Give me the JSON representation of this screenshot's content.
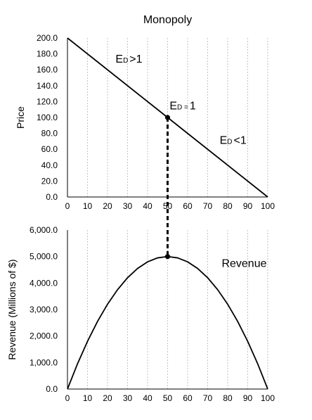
{
  "chart_data": [
    {
      "type": "line",
      "title": "Monopoly",
      "xlabel": "",
      "ylabel": "Price",
      "xlim": [
        0,
        100
      ],
      "ylim": [
        0,
        200
      ],
      "x_ticks": [
        "0",
        "10",
        "20",
        "30",
        "40",
        "50",
        "60",
        "70",
        "80",
        "90",
        "100"
      ],
      "y_ticks": [
        "0.0",
        "20.0",
        "40.0",
        "60.0",
        "80.0",
        "100.0",
        "120.0",
        "140.0",
        "160.0",
        "180.0",
        "200.0"
      ],
      "series": [
        {
          "x": [
            0,
            100
          ],
          "y": [
            200,
            0
          ]
        }
      ],
      "marker": {
        "x": 50,
        "y": 100
      },
      "annotations": [
        {
          "main": "E",
          "sub": "D",
          "rest": ">1",
          "x": 24,
          "y": 169
        },
        {
          "main": "E",
          "sub": "D =",
          "rest": "1",
          "x": 51,
          "y": 110
        },
        {
          "main": "E",
          "sub": "D",
          "rest": "<1",
          "x": 76,
          "y": 67
        }
      ],
      "grid": "vertical-dotted"
    },
    {
      "type": "line",
      "title": "",
      "xlabel": "",
      "ylabel": "Revenue (Millions of $)",
      "xlim": [
        0,
        100
      ],
      "ylim": [
        0,
        6000
      ],
      "x_ticks": [
        "0",
        "10",
        "20",
        "30",
        "40",
        "50",
        "60",
        "70",
        "80",
        "90",
        "100"
      ],
      "y_ticks": [
        "0.0",
        "1,000.0",
        "2,000.0",
        "3,000.0",
        "4,000.0",
        "5,000.0",
        "6,000.0"
      ],
      "series": [
        {
          "name": "Revenue",
          "x": [
            0,
            5,
            10,
            15,
            20,
            25,
            30,
            35,
            40,
            45,
            50,
            55,
            60,
            65,
            70,
            75,
            80,
            85,
            90,
            95,
            100
          ],
          "y": [
            0,
            950,
            1800,
            2550,
            3200,
            3750,
            4200,
            4550,
            4800,
            4950,
            5000,
            4950,
            4800,
            4550,
            4200,
            3750,
            3200,
            2550,
            1800,
            950,
            0
          ]
        }
      ],
      "marker": {
        "x": 50,
        "y": 5000
      },
      "series_label": {
        "text": "Revenue",
        "x": 77,
        "y": 4600
      },
      "grid": "vertical-dotted"
    }
  ]
}
